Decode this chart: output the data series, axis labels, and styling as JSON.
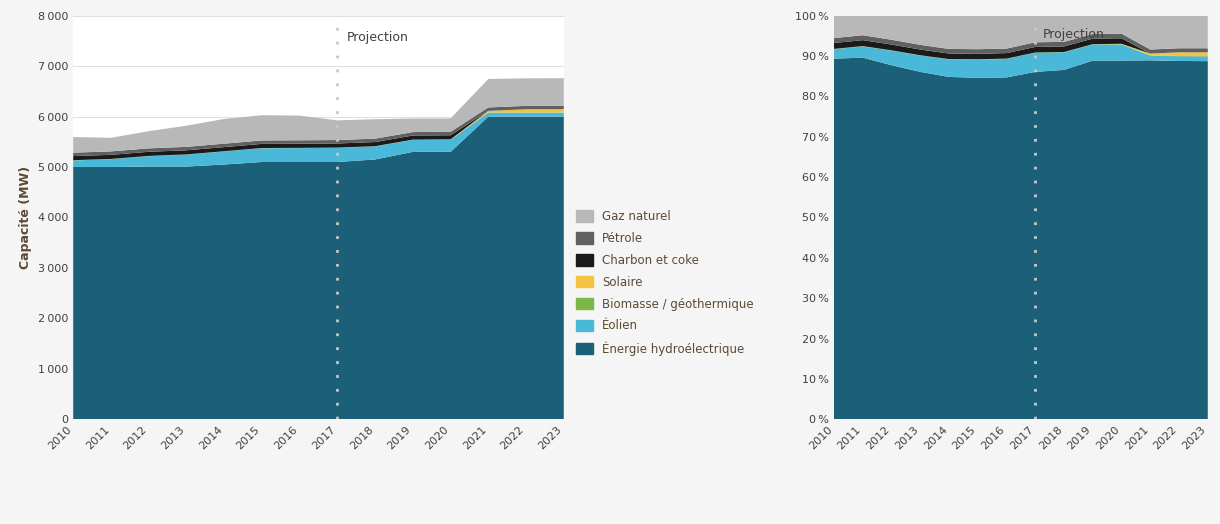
{
  "years": [
    2010,
    2011,
    2012,
    2013,
    2014,
    2015,
    2016,
    2017,
    2018,
    2019,
    2020,
    2021,
    2022,
    2023
  ],
  "hydro": [
    5000,
    5000,
    5010,
    5010,
    5050,
    5100,
    5100,
    5100,
    5150,
    5300,
    5300,
    6000,
    6000,
    6000
  ],
  "wind": [
    130,
    155,
    205,
    235,
    258,
    272,
    275,
    280,
    258,
    238,
    238,
    78,
    78,
    78
  ],
  "biomass": [
    5,
    5,
    5,
    5,
    5,
    5,
    5,
    5,
    5,
    5,
    5,
    5,
    5,
    5
  ],
  "solar": [
    0,
    0,
    0,
    0,
    0,
    0,
    0,
    0,
    0,
    0,
    5,
    30,
    62,
    65
  ],
  "coal": [
    82,
    82,
    82,
    82,
    82,
    82,
    82,
    82,
    82,
    82,
    82,
    0,
    0,
    0
  ],
  "oil": [
    68,
    68,
    68,
    68,
    68,
    68,
    68,
    68,
    68,
    68,
    68,
    68,
    68,
    68
  ],
  "gas": [
    310,
    270,
    340,
    420,
    490,
    500,
    490,
    390,
    385,
    270,
    265,
    565,
    545,
    545
  ],
  "colors": {
    "hydro": "#1b6078",
    "wind": "#4ab8d8",
    "biomass": "#7ab648",
    "solar": "#f5c242",
    "coal": "#1a1a1a",
    "oil": "#606060",
    "gas": "#b8b8b8"
  },
  "legend_labels": [
    "Gaz naturel",
    "Pétrole",
    "Charbon et coke",
    "Solaire",
    "Biomasse / géothermique",
    "Éolien",
    "Énergie hydroélectrique"
  ],
  "projection_year": 2017,
  "ylabel_left": "Capacité (MW)",
  "background_color": "#f5f5f5",
  "plot_bg_color": "#ffffff",
  "grid_color": "#e0e0e0",
  "text_color": "#404040",
  "label_color": "#5c4a32",
  "projection_label": "Projection",
  "vline_color": "#c8c8c8"
}
